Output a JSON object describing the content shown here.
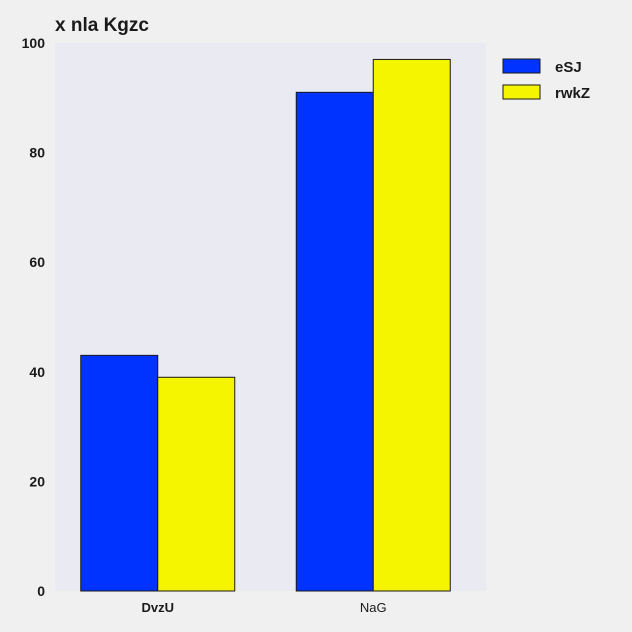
{
  "chart_data": {
    "type": "bar",
    "title": "x nla Kgzc",
    "xlabel": "",
    "ylabel": "",
    "categories": [
      "DvzU",
      "NaG"
    ],
    "series": [
      {
        "name": "eSJ",
        "values": [
          43,
          91
        ],
        "color": "#0033ff"
      },
      {
        "name": "rwkZ",
        "values": [
          39,
          97
        ],
        "color": "#f5f500"
      }
    ],
    "ylim": [
      0,
      100
    ],
    "yticks": [
      0,
      20,
      40,
      60,
      80,
      100
    ],
    "grid": false,
    "legend": "top-right",
    "plot_background": "#eaeaf2",
    "page_background": "#f0f0f0"
  }
}
